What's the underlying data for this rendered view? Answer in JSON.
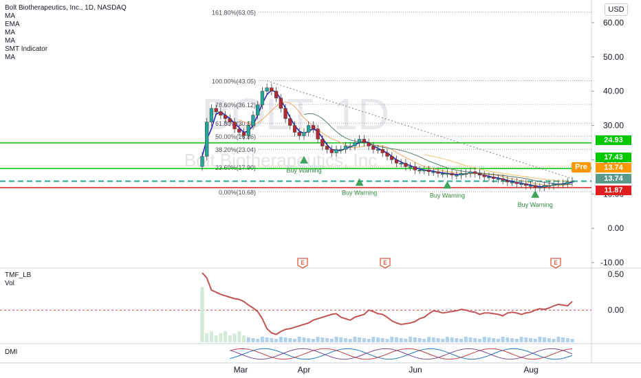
{
  "legend": {
    "symbol": "Bolt Biotherapeutics, Inc., 1D, NASDAQ",
    "indicators": [
      "MA",
      "EMA",
      "MA",
      "MA",
      "SMT Indicator",
      "MA"
    ]
  },
  "currency": "USD",
  "watermark": {
    "ticker": "BOLT, 1D",
    "name": "Bolt Biotherapeutics, Inc"
  },
  "tags": {
    "pre_label": "Pre",
    "price_24": "24.93",
    "price_17": "17.43",
    "price_pre": "13.74",
    "price_last": "13.74",
    "price_red": "11.87"
  },
  "panes": {
    "tmf": "TMF_LB",
    "vol": "Vol",
    "dmi": "DMI"
  },
  "chart_data": {
    "type": "candlestick",
    "price_axis": {
      "ticks": [
        "60.00",
        "50.00",
        "40.00",
        "30.00",
        "20.00",
        "10.00",
        "0.00",
        "-10.00"
      ],
      "ylim": [
        -11,
        65
      ]
    },
    "time_axis": {
      "ticks": [
        "Mar",
        "Apr",
        "Jun",
        "Aug"
      ]
    },
    "fibonacci": [
      {
        "label": "161.80%(63.05)",
        "value": 63.05
      },
      {
        "label": "100.00%(43.05)",
        "value": 43.05
      },
      {
        "label": "78.60%(36.12)",
        "value": 36.12
      },
      {
        "label": "61.80%(30.68)",
        "value": 30.68
      },
      {
        "label": "50.00%(26.86)",
        "value": 26.86
      },
      {
        "label": "38.20%(23.04)",
        "value": 23.04
      },
      {
        "label": "23.60%(17.90)",
        "value": 17.9
      },
      {
        "label": "0.00%(10.68)",
        "value": 10.68
      }
    ],
    "horizontal_levels": [
      {
        "value": 24.93,
        "color": "#00c800"
      },
      {
        "value": 17.43,
        "color": "#00c800"
      },
      {
        "value": 13.74,
        "color": "#26a69a",
        "style": "dashed"
      },
      {
        "value": 11.87,
        "color": "#e01e1e"
      }
    ],
    "close": [
      21,
      31,
      35,
      34,
      33,
      32,
      31,
      29,
      28,
      27,
      30,
      33,
      36,
      40,
      41,
      40,
      38,
      35,
      32,
      30,
      28,
      27,
      28,
      30,
      29,
      26,
      24,
      23,
      22,
      23,
      23,
      24,
      24,
      25,
      26,
      25,
      24,
      23,
      23,
      22,
      21,
      20,
      19,
      19,
      18,
      18,
      17,
      17,
      17,
      16.5,
      16.5,
      16,
      16,
      16,
      15.5,
      15.5,
      16,
      16,
      16.5,
      16,
      15.5,
      15,
      15,
      14.5,
      14.5,
      14,
      13.5,
      13.5,
      13,
      13,
      12.5,
      12.5,
      12,
      12,
      12.5,
      12.5,
      13,
      13,
      13,
      13.5,
      13.74
    ],
    "markers": [
      {
        "label": "Buy Warning",
        "index": 22,
        "value": 20.5
      },
      {
        "label": "Buy Warning",
        "index": 34,
        "value": 14.0
      },
      {
        "label": "Buy Warning",
        "index": 53,
        "value": 13.2
      },
      {
        "label": "Buy Warning",
        "index": 72,
        "value": 10.5
      }
    ],
    "earnings": [
      "E",
      "E",
      "E"
    ],
    "tmf": {
      "axis_ticks": [
        "0.50",
        "0.00"
      ],
      "ylim": [
        -0.45,
        0.55
      ],
      "values": [
        0.52,
        0.45,
        0.28,
        0.25,
        0.22,
        0.2,
        0.18,
        0.16,
        0.15,
        0.12,
        0.07,
        0.03,
        -0.02,
        -0.12,
        -0.26,
        -0.32,
        -0.34,
        -0.3,
        -0.27,
        -0.26,
        -0.24,
        -0.22,
        -0.2,
        -0.18,
        -0.14,
        -0.12,
        -0.1,
        -0.08,
        -0.06,
        -0.05,
        -0.1,
        -0.12,
        -0.14,
        -0.1,
        -0.08,
        -0.06,
        0.0,
        -0.02,
        -0.05,
        -0.06,
        -0.1,
        -0.15,
        -0.18,
        -0.2,
        -0.19,
        -0.18,
        -0.16,
        -0.12,
        -0.1,
        -0.05,
        -0.01,
        -0.02,
        -0.04,
        -0.03,
        -0.02,
        -0.01,
        0.01,
        0.0,
        -0.02,
        -0.03,
        -0.06,
        -0.04,
        -0.04,
        -0.05,
        -0.06,
        -0.08,
        -0.04,
        -0.03,
        -0.04,
        -0.06,
        -0.04,
        -0.03,
        0.0,
        0.02,
        0.01,
        0.03,
        0.06,
        0.08,
        0.07,
        0.06,
        0.12
      ]
    }
  }
}
